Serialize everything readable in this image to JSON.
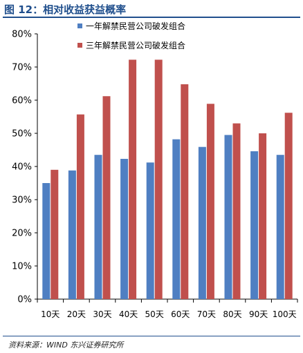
{
  "figure": {
    "title": "图 12：相对收益获益概率",
    "source": "资料来源：WIND 东兴证券研究所"
  },
  "colors": {
    "series1": "#4f7fc2",
    "series2": "#c0504d",
    "title": "#1f4e8c"
  },
  "chart_data": {
    "type": "bar",
    "categories": [
      "10天",
      "20天",
      "30天",
      "40天",
      "50天",
      "60天",
      "70天",
      "80天",
      "90天",
      "100天"
    ],
    "series": [
      {
        "name": "一年解禁民营公司破发组合",
        "values": [
          35,
          38.8,
          43.5,
          42.3,
          41.2,
          48.2,
          45.9,
          49.5,
          44.6,
          43.5
        ]
      },
      {
        "name": "三年解禁民营公司破发组合",
        "values": [
          39,
          55.7,
          61.2,
          72.2,
          72.2,
          64.8,
          58.9,
          53,
          50,
          56.2
        ]
      }
    ],
    "ylim": [
      0,
      80
    ],
    "yticks": [
      "0%",
      "10%",
      "20%",
      "30%",
      "40%",
      "50%",
      "60%",
      "70%",
      "80%"
    ],
    "grid": false,
    "legend_position": "top-left"
  }
}
